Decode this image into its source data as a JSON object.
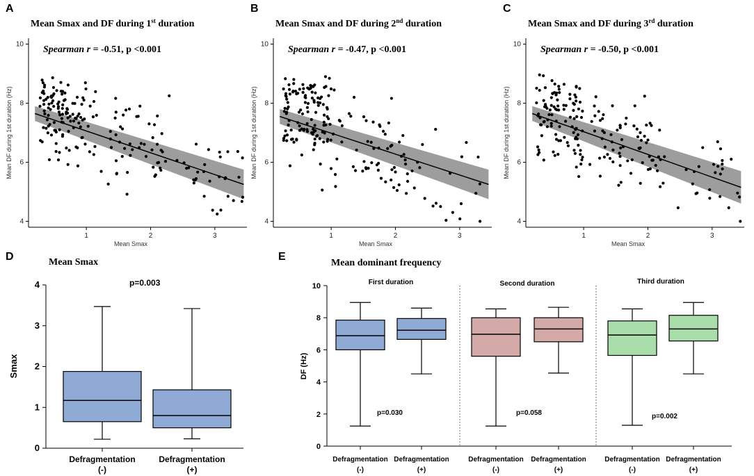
{
  "figure": {
    "panels": [
      {
        "letter": "A",
        "title": "Mean Smax and DF during 1",
        "title_sup": "st",
        "title_end": " duration",
        "stat_prefix": "Spearman ",
        "stat_r": "r",
        "stat_rest": " = -0.51, p <0.001",
        "ylabel": "Mean DF during 1st duration (Hz)",
        "xlabel": "Mean Smax",
        "seed": 11
      },
      {
        "letter": "B",
        "title": "Mean Smax and DF during 2",
        "title_sup": "nd",
        "title_end": " duration",
        "stat_prefix": "Spearman ",
        "stat_r": "r",
        "stat_rest": " = -0.47, p <0.001",
        "ylabel": "Mean DF during 1st duration (Hz)",
        "xlabel": "Mean Smax",
        "seed": 23
      },
      {
        "letter": "C",
        "title": "Mean Smax and DF during 3",
        "title_sup": "rd",
        "title_end": " duration",
        "stat_prefix": "Spearman ",
        "stat_r": "r",
        "stat_rest": " = -0.50, p <0.001",
        "ylabel": "Mean DF during 1st duration (Hz)",
        "xlabel": "Mean Smax",
        "seed": 37
      }
    ],
    "panel_d": {
      "letter": "D",
      "title": "Mean Smax",
      "ylabel": "Smax",
      "pvalue": "p=0.003",
      "cat1_line1": "Defragmentation",
      "cat1_line2": "(-)",
      "cat2_line1": "Defragmentation",
      "cat2_line2": "(+)"
    },
    "panel_e": {
      "letter": "E",
      "title": "Mean dominant frequency",
      "ylabel": "DF (Hz)",
      "groups": [
        {
          "title": "First duration",
          "pvalue": "p=0.030"
        },
        {
          "title": "Second duration",
          "pvalue": "p=0.058"
        },
        {
          "title": "Third duration",
          "pvalue": "p=0.002"
        }
      ],
      "cat_line1": "Defragmentation",
      "cat_minus": "(-)",
      "cat_plus": "(+)"
    }
  },
  "chart_data": [
    {
      "type": "scatter",
      "id": "A",
      "title": "Mean Smax and DF during 1st duration",
      "xlabel": "Mean Smax",
      "ylabel": "Mean DF during 1st duration (Hz)",
      "xlim": [
        0.1,
        3.5
      ],
      "ylim": [
        3.8,
        10.2
      ],
      "xticks": [
        1,
        2,
        3
      ],
      "yticks": [
        4,
        6,
        8,
        10
      ],
      "regression": {
        "x": [
          0.2,
          3.45
        ],
        "y": [
          7.65,
          5.25
        ],
        "ci_low": [
          7.4,
          4.75
        ],
        "ci_high": [
          7.9,
          5.75
        ]
      },
      "n_points": 200
    },
    {
      "type": "scatter",
      "id": "B",
      "title": "Mean Smax and DF during 2nd duration",
      "xlabel": "Mean Smax",
      "ylabel": "Mean DF during 1st duration (Hz)",
      "xlim": [
        0.1,
        3.5
      ],
      "ylim": [
        3.8,
        10.2
      ],
      "xticks": [
        1,
        2,
        3
      ],
      "yticks": [
        4,
        6,
        8,
        10
      ],
      "regression": {
        "x": [
          0.2,
          3.45
        ],
        "y": [
          7.55,
          5.25
        ],
        "ci_low": [
          7.3,
          4.75
        ],
        "ci_high": [
          7.8,
          5.75
        ]
      },
      "n_points": 200
    },
    {
      "type": "scatter",
      "id": "C",
      "title": "Mean Smax and DF during 3rd duration",
      "xlabel": "Mean Smax",
      "ylabel": "Mean DF during 1st duration (Hz)",
      "xlim": [
        0.1,
        3.5
      ],
      "ylim": [
        3.8,
        10.2
      ],
      "xticks": [
        1,
        2,
        3
      ],
      "yticks": [
        4,
        6,
        8,
        10
      ],
      "regression": {
        "x": [
          0.2,
          3.45
        ],
        "y": [
          7.65,
          5.15
        ],
        "ci_low": [
          7.4,
          4.6
        ],
        "ci_high": [
          7.9,
          5.7
        ]
      },
      "n_points": 200
    },
    {
      "type": "box",
      "id": "D",
      "title": "Mean Smax",
      "ylabel": "Smax",
      "ylim": [
        0,
        4
      ],
      "yticks": [
        0,
        1,
        2,
        3,
        4
      ],
      "categories": [
        "Defragmentation (-)",
        "Defragmentation (+)"
      ],
      "boxes": [
        {
          "min": 0.22,
          "q1": 0.65,
          "median": 1.17,
          "q3": 1.88,
          "max": 3.47
        },
        {
          "min": 0.23,
          "q1": 0.5,
          "median": 0.8,
          "q3": 1.43,
          "max": 3.42
        }
      ],
      "pvalue": "p=0.003",
      "color": "#8eaad5"
    },
    {
      "type": "box",
      "id": "E",
      "title": "Mean dominant frequency",
      "ylabel": "DF (Hz)",
      "ylim": [
        0,
        10
      ],
      "yticks": [
        0,
        2,
        4,
        6,
        8,
        10
      ],
      "groups": [
        "First duration",
        "Second duration",
        "Third duration"
      ],
      "colors": [
        "#8eaad5",
        "#d4aaa9",
        "#a9dda9"
      ],
      "boxes": [
        [
          {
            "min": 1.25,
            "q1": 6.0,
            "median": 6.88,
            "q3": 7.85,
            "max": 8.95
          },
          {
            "min": 4.5,
            "q1": 6.65,
            "median": 7.22,
            "q3": 7.95,
            "max": 8.6
          }
        ],
        [
          {
            "min": 1.25,
            "q1": 5.6,
            "median": 6.97,
            "q3": 8.0,
            "max": 8.55
          },
          {
            "min": 4.55,
            "q1": 6.5,
            "median": 7.3,
            "q3": 8.0,
            "max": 8.65
          }
        ],
        [
          {
            "min": 1.3,
            "q1": 5.65,
            "median": 6.92,
            "q3": 7.8,
            "max": 8.55
          },
          {
            "min": 4.5,
            "q1": 6.55,
            "median": 7.3,
            "q3": 8.15,
            "max": 8.95
          }
        ]
      ],
      "pvalues": [
        "p=0.030",
        "p=0.058",
        "p=0.002"
      ]
    }
  ]
}
